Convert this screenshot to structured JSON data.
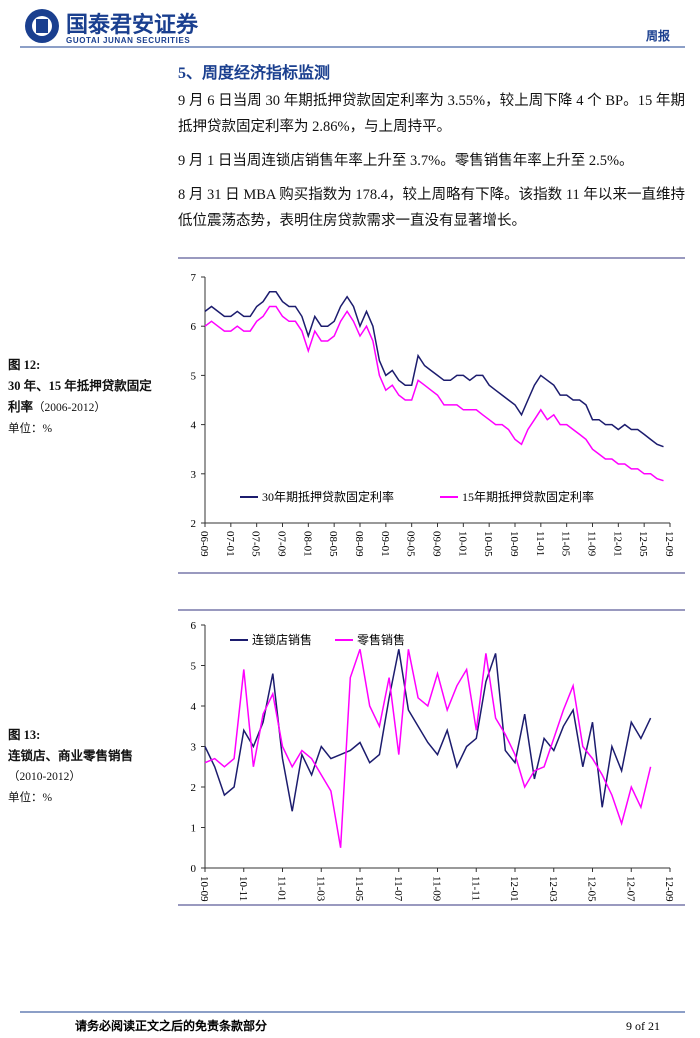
{
  "header": {
    "company": "国泰君安证券",
    "company_en": "GUOTAI JUNAN SECURITIES",
    "report_type": "周报"
  },
  "section_title": "5、周度经济指标监测",
  "paragraphs": [
    "9 月 6 日当周 30 年期抵押贷款固定利率为 3.55%，较上周下降 4 个 BP。15 年期抵押贷款固定利率为 2.86%，与上周持平。",
    "9 月 1 日当周连锁店销售年率上升至 3.7%。零售销售年率上升至 2.5%。",
    "8 月 31 日 MBA 购买指数为 178.4，较上周略有下降。该指数 11 年以来一直维持低位震荡态势，表明住房贷款需求一直没有显著增长。"
  ],
  "figures": [
    {
      "label": "图 12:",
      "caption_lines": [
        "30 年、15 年抵押贷款固定",
        "利率"
      ],
      "period": "（2006-2012）",
      "unit": "单位：%"
    },
    {
      "label": "图 13:",
      "caption_lines": [
        "连锁店、商业零售销售"
      ],
      "period": "（2010-2012）",
      "unit": "单位：%"
    }
  ],
  "chart_data": [
    {
      "type": "line",
      "legend": "lower-center",
      "categories": [
        "06-09",
        null,
        null,
        null,
        "07-01",
        null,
        null,
        null,
        "07-05",
        null,
        null,
        null,
        "07-09",
        null,
        null,
        null,
        "08-01",
        null,
        null,
        null,
        "08-05",
        null,
        null,
        null,
        "08-09",
        null,
        null,
        null,
        "09-01",
        null,
        null,
        null,
        "09-05",
        null,
        null,
        null,
        "09-09",
        null,
        null,
        null,
        "10-01",
        null,
        null,
        null,
        "10-05",
        null,
        null,
        null,
        "10-09",
        null,
        null,
        null,
        "11-01",
        null,
        null,
        null,
        "11-05",
        null,
        null,
        null,
        "11-09",
        null,
        null,
        null,
        "12-01",
        null,
        null,
        null,
        "12-05",
        null,
        null,
        null,
        "12-09"
      ],
      "series": [
        {
          "name": "30年期抵押贷款固定利率",
          "color": "#1c1c6e",
          "values": [
            6.3,
            6.4,
            6.3,
            6.2,
            6.2,
            6.3,
            6.2,
            6.2,
            6.4,
            6.5,
            6.7,
            6.7,
            6.5,
            6.4,
            6.4,
            6.2,
            5.8,
            6.2,
            6.0,
            6.0,
            6.1,
            6.4,
            6.6,
            6.4,
            6.0,
            6.3,
            6.0,
            5.3,
            5.0,
            5.1,
            4.9,
            4.8,
            4.8,
            5.4,
            5.2,
            5.1,
            5.0,
            4.9,
            4.9,
            5.0,
            5.0,
            4.9,
            5.0,
            5.0,
            4.8,
            4.7,
            4.6,
            4.5,
            4.4,
            4.2,
            4.5,
            4.8,
            5.0,
            4.9,
            4.8,
            4.6,
            4.6,
            4.5,
            4.5,
            4.4,
            4.1,
            4.1,
            4.0,
            4.0,
            3.9,
            4.0,
            3.9,
            3.9,
            3.8,
            3.7,
            3.6,
            3.55,
            null
          ]
        },
        {
          "name": "15年期抵押贷款固定利率",
          "color": "#ff00ff",
          "values": [
            6.0,
            6.1,
            6.0,
            5.9,
            5.9,
            6.0,
            5.9,
            5.9,
            6.1,
            6.2,
            6.4,
            6.4,
            6.2,
            6.1,
            6.1,
            5.9,
            5.5,
            5.9,
            5.7,
            5.7,
            5.8,
            6.1,
            6.3,
            6.1,
            5.8,
            6.0,
            5.7,
            5.0,
            4.7,
            4.8,
            4.6,
            4.5,
            4.5,
            4.9,
            4.8,
            4.7,
            4.6,
            4.4,
            4.4,
            4.4,
            4.3,
            4.3,
            4.3,
            4.2,
            4.1,
            4.0,
            4.0,
            3.9,
            3.7,
            3.6,
            3.9,
            4.1,
            4.3,
            4.1,
            4.2,
            4.0,
            4.0,
            3.9,
            3.8,
            3.7,
            3.5,
            3.4,
            3.3,
            3.3,
            3.2,
            3.2,
            3.1,
            3.1,
            3.0,
            3.0,
            2.9,
            2.86,
            null
          ]
        }
      ],
      "ylim": [
        2,
        7
      ],
      "yticks": [
        2,
        3,
        4,
        5,
        6,
        7
      ]
    },
    {
      "type": "line",
      "legend": "upper-left",
      "categories": [
        "10-09",
        null,
        null,
        null,
        "10-11",
        null,
        null,
        null,
        "11-01",
        null,
        null,
        null,
        "11-03",
        null,
        null,
        null,
        "11-05",
        null,
        null,
        null,
        "11-07",
        null,
        null,
        null,
        "11-09",
        null,
        null,
        null,
        "11-11",
        null,
        null,
        null,
        "12-01",
        null,
        null,
        null,
        "12-03",
        null,
        null,
        null,
        "12-05",
        null,
        null,
        null,
        "12-07",
        null,
        null,
        null,
        "12-09"
      ],
      "series": [
        {
          "name": "连锁店销售",
          "color": "#1c1c6e",
          "values": [
            3.0,
            2.5,
            1.8,
            2.0,
            3.4,
            3.0,
            3.6,
            4.8,
            2.7,
            1.4,
            2.8,
            2.3,
            3.0,
            2.7,
            2.8,
            2.9,
            3.1,
            2.6,
            2.8,
            4.2,
            5.4,
            3.9,
            3.5,
            3.1,
            2.8,
            3.4,
            2.5,
            3.0,
            3.2,
            4.6,
            5.3,
            2.9,
            2.6,
            3.8,
            2.2,
            3.2,
            2.9,
            3.5,
            3.9,
            2.5,
            3.6,
            1.5,
            3.0,
            2.4,
            3.6,
            3.2,
            3.7,
            null,
            null
          ]
        },
        {
          "name": "零售销售",
          "color": "#ff00ff",
          "values": [
            2.6,
            2.7,
            2.5,
            2.7,
            4.9,
            2.5,
            3.8,
            4.3,
            3.0,
            2.5,
            2.9,
            2.7,
            2.3,
            1.9,
            0.5,
            4.7,
            5.4,
            4.0,
            3.5,
            4.7,
            2.8,
            5.4,
            4.2,
            4.0,
            4.8,
            3.9,
            4.5,
            4.9,
            3.4,
            5.3,
            3.7,
            3.3,
            2.8,
            2.0,
            2.4,
            2.5,
            3.2,
            3.9,
            4.5,
            3.0,
            2.7,
            2.3,
            1.8,
            1.1,
            2.0,
            1.5,
            2.5,
            null,
            null
          ]
        }
      ],
      "ylim": [
        0,
        6
      ],
      "yticks": [
        0,
        1,
        2,
        3,
        4,
        5,
        6
      ]
    }
  ],
  "footer": {
    "disclaimer": "请务必阅读正文之后的免责条款部分",
    "page": "9 of 21"
  }
}
